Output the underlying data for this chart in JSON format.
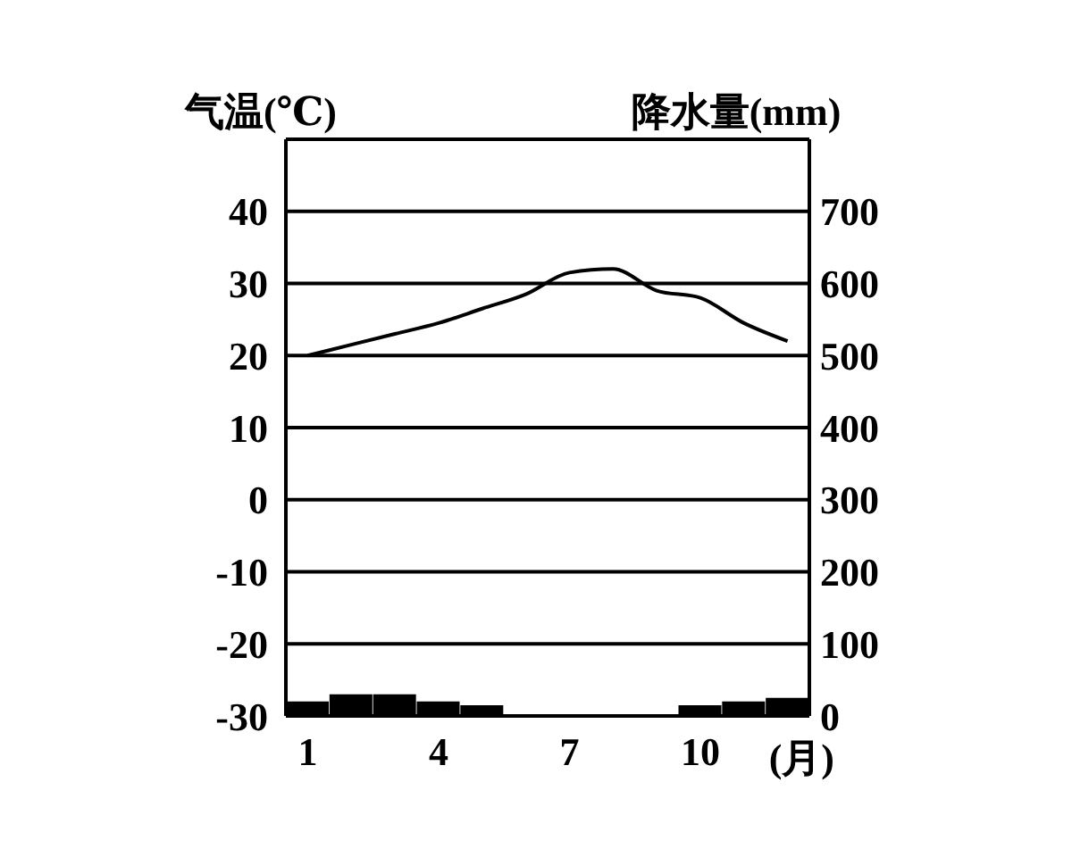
{
  "chart_data": {
    "type": "bar",
    "xlabel": "(月)",
    "ylabel": "气温(℃)",
    "y2label": "降水量(mm)",
    "categories": [
      "1",
      null,
      null,
      "4",
      null,
      null,
      "7",
      null,
      null,
      "10",
      null,
      null
    ],
    "series": [
      {
        "axis": "y2",
        "color": "#000000",
        "values": [
          20,
          30,
          30,
          20,
          15,
          0,
          0,
          0,
          0,
          15,
          20,
          25
        ]
      },
      {
        "type": "line",
        "color": "#000000",
        "values": [
          20,
          21.5,
          23,
          24.5,
          26.5,
          28.5,
          31.5,
          32,
          29,
          28,
          24.5,
          22
        ]
      }
    ],
    "ylim": [
      -30,
      50
    ],
    "yticks": [
      -30,
      -20,
      -10,
      0,
      10,
      20,
      30,
      40
    ],
    "y2lim": [
      0,
      800
    ],
    "y2ticks": [
      0,
      100,
      200,
      300,
      400,
      500,
      600,
      700
    ],
    "grid": "y",
    "marker": "none"
  }
}
